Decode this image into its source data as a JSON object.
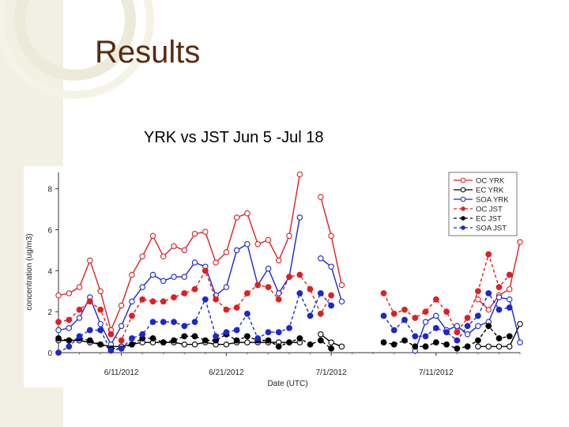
{
  "slide": {
    "title": "Results",
    "subtitle": "YRK vs JST Jun 5 -Jul 18"
  },
  "colors": {
    "title": "#5a2a12",
    "side_strip": "#f2f0e2",
    "oc": "#e02020",
    "ec": "#000000",
    "soa": "#1a28d0"
  },
  "chart_data": {
    "type": "line",
    "title": "YRK vs JST Jun 5 -Jul 18",
    "xlabel": "Date (UTC)",
    "ylabel": "concentration (ug/m3)",
    "ylim": [
      0,
      8.8
    ],
    "xlim": [
      5,
      49
    ],
    "x_unit": "day number, June 1 = 1",
    "yticks": [
      0,
      2,
      4,
      6,
      8
    ],
    "xticks": [
      {
        "value": 11,
        "label": "6/11/2012"
      },
      {
        "value": 21,
        "label": "6/21/2012"
      },
      {
        "value": 31,
        "label": "7/1/2012"
      },
      {
        "value": 41,
        "label": "7/11/2012"
      }
    ],
    "legend_position": "top-right",
    "series": [
      {
        "name": "OC YRK",
        "color": "#e02020",
        "marker": "open",
        "dash": "solid",
        "points": [
          [
            5,
            2.8
          ],
          [
            6,
            2.9
          ],
          [
            7,
            3.2
          ],
          [
            8,
            4.5
          ],
          [
            9,
            3.0
          ],
          [
            10,
            1.1
          ],
          [
            11,
            2.3
          ],
          [
            12,
            3.8
          ],
          [
            13,
            4.7
          ],
          [
            14,
            5.7
          ],
          [
            15,
            4.7
          ],
          [
            16,
            5.2
          ],
          [
            17,
            5.0
          ],
          [
            18,
            5.8
          ],
          [
            19,
            5.9
          ],
          [
            20,
            4.4
          ],
          [
            21,
            4.9
          ],
          [
            22,
            6.6
          ],
          [
            23,
            6.8
          ],
          [
            24,
            5.3
          ],
          [
            25,
            5.5
          ],
          [
            26,
            4.5
          ],
          [
            27,
            5.7
          ],
          [
            28,
            8.7
          ],
          null,
          [
            30,
            7.6
          ],
          [
            31,
            5.7
          ],
          [
            32,
            3.3
          ],
          null,
          [
            45,
            2.6
          ],
          [
            46,
            2.1
          ],
          [
            47,
            2.8
          ],
          [
            48,
            3.1
          ],
          [
            49,
            5.4
          ]
        ]
      },
      {
        "name": "EC YRK",
        "color": "#000000",
        "marker": "open",
        "dash": "solid",
        "points": [
          [
            5,
            0.6
          ],
          [
            6,
            0.6
          ],
          [
            7,
            0.6
          ],
          [
            8,
            0.5
          ],
          [
            9,
            0.4
          ],
          [
            10,
            0.3
          ],
          [
            11,
            0.3
          ],
          [
            12,
            0.4
          ],
          [
            13,
            0.5
          ],
          [
            14,
            0.5
          ],
          [
            15,
            0.5
          ],
          [
            16,
            0.5
          ],
          [
            17,
            0.4
          ],
          [
            18,
            0.4
          ],
          [
            19,
            0.5
          ],
          [
            20,
            0.4
          ],
          [
            21,
            0.4
          ],
          [
            22,
            0.5
          ],
          [
            23,
            0.5
          ],
          [
            24,
            0.5
          ],
          [
            25,
            0.5
          ],
          [
            26,
            0.5
          ],
          [
            27,
            0.5
          ],
          [
            28,
            0.5
          ],
          null,
          [
            30,
            0.9
          ],
          [
            31,
            0.5
          ],
          [
            32,
            0.3
          ],
          null,
          [
            45,
            0.3
          ],
          [
            46,
            0.3
          ],
          [
            47,
            0.3
          ],
          [
            48,
            0.3
          ],
          [
            49,
            1.4
          ]
        ]
      },
      {
        "name": "SOA YRK",
        "color": "#1a28d0",
        "marker": "open",
        "dash": "solid",
        "points": [
          [
            5,
            1.1
          ],
          [
            6,
            1.2
          ],
          [
            7,
            1.7
          ],
          [
            8,
            2.7
          ],
          [
            9,
            1.4
          ],
          [
            10,
            0.4
          ],
          [
            11,
            1.3
          ],
          [
            12,
            2.5
          ],
          [
            13,
            3.2
          ],
          [
            14,
            3.8
          ],
          [
            15,
            3.5
          ],
          [
            16,
            3.7
          ],
          [
            17,
            3.7
          ],
          [
            18,
            4.4
          ],
          [
            19,
            4.2
          ],
          [
            20,
            2.8
          ],
          [
            21,
            3.2
          ],
          [
            22,
            5.0
          ],
          [
            23,
            5.3
          ],
          [
            24,
            3.3
          ],
          [
            25,
            4.1
          ],
          [
            26,
            2.9
          ],
          [
            27,
            3.7
          ],
          [
            28,
            6.6
          ],
          null,
          [
            30,
            4.6
          ],
          [
            31,
            4.2
          ],
          [
            32,
            2.5
          ],
          null,
          [
            39,
            0.1
          ],
          [
            40,
            1.5
          ],
          [
            41,
            1.8
          ],
          [
            42,
            1.1
          ],
          [
            43,
            1.3
          ],
          [
            44,
            0.9
          ],
          [
            45,
            1.3
          ],
          [
            46,
            1.5
          ],
          [
            47,
            2.7
          ],
          [
            48,
            2.6
          ],
          [
            49,
            0.5
          ]
        ]
      },
      {
        "name": "OC JST",
        "color": "#e02020",
        "marker": "filled",
        "dash": "dashed",
        "points": [
          [
            5,
            1.5
          ],
          [
            6,
            1.6
          ],
          [
            7,
            2.1
          ],
          [
            8,
            2.5
          ],
          [
            9,
            2.1
          ],
          [
            10,
            0.9
          ],
          [
            11,
            0.6
          ],
          [
            12,
            1.8
          ],
          [
            13,
            2.6
          ],
          [
            14,
            2.5
          ],
          [
            15,
            2.5
          ],
          [
            16,
            2.7
          ],
          [
            17,
            2.9
          ],
          [
            18,
            3.1
          ],
          [
            19,
            4.0
          ],
          [
            20,
            2.6
          ],
          [
            21,
            2.1
          ],
          [
            22,
            2.2
          ],
          [
            23,
            2.9
          ],
          [
            24,
            3.3
          ],
          [
            25,
            3.2
          ],
          [
            26,
            2.6
          ],
          [
            27,
            3.7
          ],
          [
            28,
            3.8
          ],
          [
            29,
            3.1
          ],
          [
            30,
            1.9
          ],
          [
            31,
            2.8
          ],
          null,
          [
            36,
            2.9
          ],
          [
            37,
            1.9
          ],
          [
            38,
            2.1
          ],
          [
            39,
            1.7
          ],
          [
            40,
            2.0
          ],
          [
            41,
            2.6
          ],
          [
            42,
            2.0
          ],
          [
            43,
            1.0
          ],
          [
            44,
            1.7
          ],
          [
            45,
            3.0
          ],
          [
            46,
            4.8
          ],
          [
            47,
            3.2
          ],
          [
            48,
            3.8
          ]
        ]
      },
      {
        "name": "EC JST",
        "color": "#000000",
        "marker": "filled",
        "dash": "dashed",
        "points": [
          [
            5,
            0.7
          ],
          [
            6,
            0.6
          ],
          [
            7,
            0.7
          ],
          [
            8,
            0.6
          ],
          [
            9,
            0.4
          ],
          [
            10,
            0.2
          ],
          [
            11,
            0.2
          ],
          [
            12,
            0.4
          ],
          [
            13,
            0.7
          ],
          [
            14,
            0.7
          ],
          [
            15,
            0.5
          ],
          [
            16,
            0.6
          ],
          [
            17,
            0.8
          ],
          [
            18,
            0.8
          ],
          [
            19,
            0.6
          ],
          [
            20,
            0.6
          ],
          [
            21,
            0.9
          ],
          [
            22,
            0.6
          ],
          [
            23,
            0.8
          ],
          [
            24,
            0.6
          ],
          [
            25,
            0.6
          ],
          [
            26,
            0.3
          ],
          [
            27,
            0.5
          ],
          [
            28,
            0.7
          ],
          [
            29,
            0.4
          ],
          [
            30,
            0.6
          ],
          [
            31,
            0.2
          ],
          null,
          [
            36,
            0.5
          ],
          [
            37,
            0.4
          ],
          [
            38,
            0.6
          ],
          [
            39,
            0.3
          ],
          [
            40,
            0.3
          ],
          [
            41,
            0.5
          ],
          [
            42,
            0.4
          ],
          [
            43,
            0.2
          ],
          [
            44,
            0.3
          ],
          [
            45,
            0.6
          ],
          [
            46,
            1.3
          ],
          [
            47,
            0.7
          ],
          [
            48,
            0.8
          ]
        ]
      },
      {
        "name": "SOA JST",
        "color": "#1a28d0",
        "marker": "filled",
        "dash": "dashed",
        "points": [
          [
            5,
            0.0
          ],
          [
            6,
            0.3
          ],
          [
            7,
            0.8
          ],
          [
            8,
            1.1
          ],
          [
            9,
            1.1
          ],
          [
            10,
            0.1
          ],
          [
            11,
            0.2
          ],
          [
            12,
            0.7
          ],
          [
            13,
            0.9
          ],
          [
            14,
            1.5
          ],
          [
            15,
            1.5
          ],
          [
            16,
            1.5
          ],
          [
            17,
            1.3
          ],
          [
            18,
            1.5
          ],
          [
            19,
            2.6
          ],
          [
            20,
            0.8
          ],
          [
            21,
            1.0
          ],
          [
            22,
            1.1
          ],
          [
            23,
            1.9
          ],
          [
            24,
            0.7
          ],
          [
            25,
            1.0
          ],
          [
            26,
            1.0
          ],
          [
            27,
            1.2
          ],
          [
            28,
            2.9
          ],
          [
            29,
            1.8
          ],
          [
            30,
            2.9
          ],
          [
            31,
            2.3
          ],
          null,
          [
            36,
            1.8
          ],
          [
            37,
            1.1
          ],
          [
            38,
            1.6
          ],
          [
            39,
            0.8
          ],
          [
            40,
            0.8
          ],
          [
            41,
            1.2
          ],
          [
            42,
            1.0
          ],
          [
            43,
            0.6
          ],
          [
            44,
            1.3
          ],
          [
            45,
            1.8
          ],
          [
            46,
            2.9
          ],
          [
            47,
            2.1
          ],
          [
            48,
            2.2
          ]
        ]
      }
    ]
  }
}
